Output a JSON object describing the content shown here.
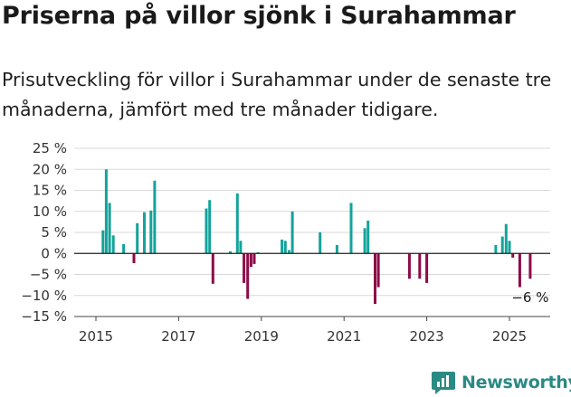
{
  "title": "Priserna på villor sjönk i Surahammar",
  "subtitle": "Prisutveckling för villor i Surahammar under de senaste tre månaderna, jämfört med tre månader tidigare.",
  "brand": {
    "name": "Newsworthy",
    "icon": "newsworthy-logo-icon",
    "color": "#2a8a84"
  },
  "colors": {
    "positive": "#13a39b",
    "negative": "#8c0b48",
    "grid": "#d9d9d9",
    "zero": "#222222"
  },
  "chart_data": {
    "type": "bar",
    "unit": "%",
    "ylim": [
      -15,
      25
    ],
    "yticks": [
      25,
      20,
      15,
      10,
      5,
      0,
      -5,
      -10,
      -15
    ],
    "ytick_labels": [
      "25 %",
      "20 %",
      "15 %",
      "10 %",
      "5 %",
      "0 %",
      "−5 %",
      "−10 %",
      "−15 %"
    ],
    "xlim": [
      2014.8,
      2026.0
    ],
    "xticks": [
      2015,
      2017,
      2019,
      2021,
      2023,
      2025
    ],
    "xtick_labels": [
      "2015",
      "2017",
      "2019",
      "2021",
      "2023",
      "2025"
    ],
    "grid": true,
    "x": [
      2015.17,
      2015.25,
      2015.33,
      2015.42,
      2015.67,
      2015.92,
      2016.0,
      2016.17,
      2016.33,
      2016.42,
      2017.67,
      2017.75,
      2017.83,
      2018.25,
      2018.42,
      2018.5,
      2018.58,
      2018.67,
      2018.75,
      2018.83,
      2018.92,
      2019.5,
      2019.58,
      2019.67,
      2019.75,
      2020.42,
      2020.83,
      2021.17,
      2021.5,
      2021.58,
      2021.75,
      2021.83,
      2022.58,
      2022.83,
      2023.0,
      2024.67,
      2024.83,
      2024.92,
      2025.0,
      2025.08,
      2025.25,
      2025.5
    ],
    "values": [
      5.5,
      20,
      12,
      4.3,
      2.2,
      -2.3,
      7.2,
      9.8,
      10.2,
      17.3,
      10.7,
      12.7,
      -7.2,
      0.5,
      14.3,
      3,
      -7,
      -10.8,
      -3.2,
      -2.5,
      0.3,
      3.3,
      3,
      0.8,
      10,
      5,
      2,
      12,
      6,
      7.8,
      -12,
      -8,
      -6,
      -6,
      -7,
      2,
      4,
      7,
      3,
      -1,
      -8,
      -6
    ],
    "annotations": [
      {
        "text": "−6 %"
      }
    ]
  }
}
